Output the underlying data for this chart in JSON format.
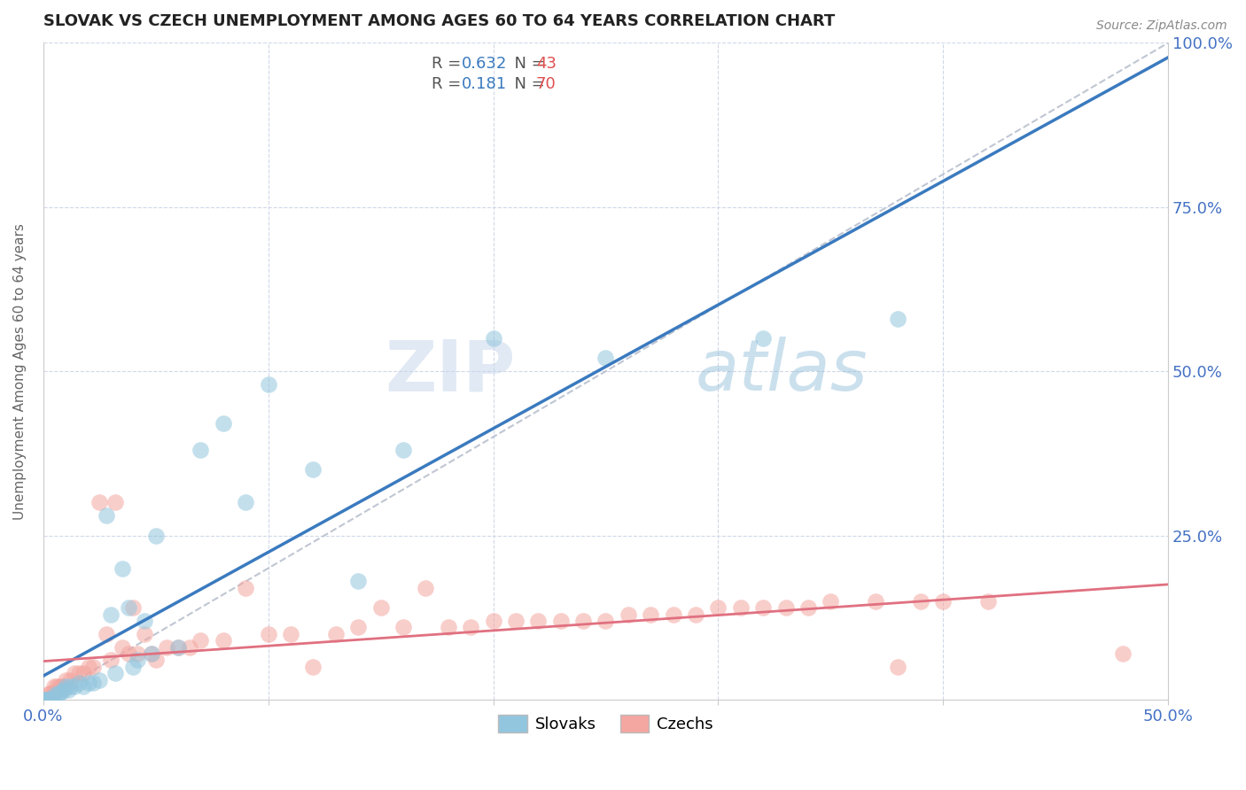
{
  "title": "SLOVAK VS CZECH UNEMPLOYMENT AMONG AGES 60 TO 64 YEARS CORRELATION CHART",
  "source": "Source: ZipAtlas.com",
  "ylabel": "Unemployment Among Ages 60 to 64 years",
  "xlim": [
    0,
    0.5
  ],
  "ylim": [
    0,
    1.0
  ],
  "slovak_color": "#92c5de",
  "czech_color": "#f4a6a0",
  "slovak_line_color": "#3a7abf",
  "czech_line_color": "#e07080",
  "ref_line_color": "#b0b8c8",
  "slovak_R": 0.632,
  "slovak_N": 43,
  "czech_R": 0.181,
  "czech_N": 70,
  "legend_R_color": "#3a7abf",
  "legend_N_color": "#e05050",
  "watermark_zip": "ZIP",
  "watermark_atlas": "atlas",
  "background_color": "#ffffff",
  "slovak_x": [
    0.0,
    0.001,
    0.001,
    0.002,
    0.003,
    0.003,
    0.004,
    0.005,
    0.006,
    0.007,
    0.008,
    0.009,
    0.01,
    0.011,
    0.012,
    0.014,
    0.016,
    0.018,
    0.02,
    0.022,
    0.025,
    0.028,
    0.03,
    0.032,
    0.035,
    0.038,
    0.04,
    0.042,
    0.045,
    0.048,
    0.05,
    0.06,
    0.07,
    0.08,
    0.09,
    0.1,
    0.12,
    0.14,
    0.16,
    0.2,
    0.25,
    0.32,
    0.38
  ],
  "slovak_y": [
    0.0,
    0.0,
    0.0,
    0.0,
    0.0,
    0.0,
    0.0,
    0.005,
    0.01,
    0.01,
    0.012,
    0.015,
    0.02,
    0.015,
    0.02,
    0.02,
    0.025,
    0.02,
    0.025,
    0.025,
    0.03,
    0.28,
    0.13,
    0.04,
    0.2,
    0.14,
    0.05,
    0.06,
    0.12,
    0.07,
    0.25,
    0.08,
    0.38,
    0.42,
    0.3,
    0.48,
    0.35,
    0.18,
    0.38,
    0.55,
    0.52,
    0.55,
    0.58
  ],
  "czech_x": [
    0.0,
    0.0,
    0.001,
    0.001,
    0.002,
    0.002,
    0.003,
    0.003,
    0.004,
    0.005,
    0.006,
    0.007,
    0.008,
    0.009,
    0.01,
    0.012,
    0.014,
    0.016,
    0.018,
    0.02,
    0.022,
    0.025,
    0.028,
    0.03,
    0.032,
    0.035,
    0.038,
    0.04,
    0.042,
    0.045,
    0.048,
    0.05,
    0.055,
    0.06,
    0.065,
    0.07,
    0.08,
    0.09,
    0.1,
    0.11,
    0.12,
    0.13,
    0.14,
    0.15,
    0.16,
    0.17,
    0.18,
    0.19,
    0.2,
    0.21,
    0.22,
    0.23,
    0.24,
    0.25,
    0.26,
    0.27,
    0.28,
    0.29,
    0.3,
    0.31,
    0.32,
    0.33,
    0.34,
    0.35,
    0.37,
    0.38,
    0.39,
    0.4,
    0.42,
    0.48
  ],
  "czech_y": [
    0.0,
    0.0,
    0.0,
    0.0,
    0.0,
    0.0,
    0.01,
    0.01,
    0.01,
    0.02,
    0.02,
    0.02,
    0.02,
    0.02,
    0.03,
    0.03,
    0.04,
    0.04,
    0.04,
    0.05,
    0.05,
    0.3,
    0.1,
    0.06,
    0.3,
    0.08,
    0.07,
    0.14,
    0.07,
    0.1,
    0.07,
    0.06,
    0.08,
    0.08,
    0.08,
    0.09,
    0.09,
    0.17,
    0.1,
    0.1,
    0.05,
    0.1,
    0.11,
    0.14,
    0.11,
    0.17,
    0.11,
    0.11,
    0.12,
    0.12,
    0.12,
    0.12,
    0.12,
    0.12,
    0.13,
    0.13,
    0.13,
    0.13,
    0.14,
    0.14,
    0.14,
    0.14,
    0.14,
    0.15,
    0.15,
    0.05,
    0.15,
    0.15,
    0.15,
    0.07
  ]
}
